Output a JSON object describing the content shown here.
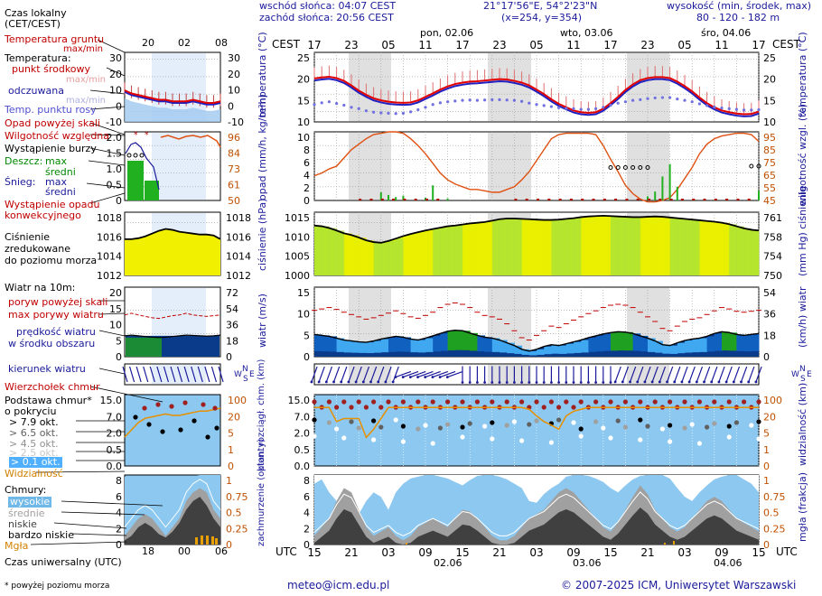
{
  "header": {
    "sunrise": "wschód słońca: 04:07 CEST",
    "sunset": "zachód słońca: 20:56 CEST",
    "coords": "21°17'56\"E, 54°2'23\"N",
    "grid": "(x=254,  y=354)",
    "altitude_title": "wysokość (min, środek, max)",
    "altitude_values": "80 - 120 - 182 m"
  },
  "timeaxis": {
    "tz_top": "CEST",
    "tz_bottom": "UTC",
    "top_hours": [
      "17",
      "23",
      "05",
      "11",
      "17",
      "23",
      "05",
      "11",
      "17",
      "23",
      "05",
      "11",
      "17"
    ],
    "bottom_hours": [
      "15",
      "21",
      "03",
      "09",
      "15",
      "21",
      "03",
      "09",
      "15",
      "21",
      "03",
      "09",
      "15"
    ],
    "days_top": [
      "pon, 02.06",
      "wto, 03.06",
      "śro, 04.06"
    ],
    "days_bottom": [
      "02.06",
      "03.06",
      "04.06"
    ]
  },
  "legend": {
    "local_time": "Czas lokalny",
    "local_time_sub": "(CET/CEST)",
    "soil_temp": "Temperatura gruntu",
    "soil_temp_sub": "max/min",
    "temperature": "Temperatura:",
    "mid_point": "punkt środkowy",
    "max_min": "max/min",
    "felt": "odczuwana",
    "dew_point": "Temp. punktu rosy",
    "above_ground": "Opad powyżej skali",
    "humidity": "Wilgotność względna",
    "storm": "Wystąpienie burzy",
    "rain": "Deszcz:",
    "max": "max",
    "mean": "średni",
    "snow": "Śnieg:",
    "conv": "Wystąpienie opadu",
    "conv2": "konwekcyjnego",
    "pressure": "Ciśnienie",
    "pressure2": "zredukowane",
    "pressure3": "do poziomu morza",
    "wind10": "Wiatr na 10m:",
    "gust_above": "poryw powyżej skali",
    "max_gust": "max porywy wiatru",
    "wind_speed": "prędkość wiatru",
    "wind_speed2": "w środku obszaru",
    "wind_dir": "kierunek wiatru",
    "cb_top": "Wierzchołek chmur",
    "cloud_base": "Podstawa chmur*",
    "cloud_base2": "o pokryciu",
    "okt": [
      "> 7.9 okt.",
      "> 6.5 okt.",
      "> 4.5 okt.",
      "> 2.5 okt.",
      "> 0.1 okt."
    ],
    "visibility": "Widzialność",
    "clouds": "Chmury:",
    "high": "wysokie",
    "mid": "średnie",
    "low": "niskie",
    "vlow": "bardzo niskie",
    "fog": "Mgła",
    "utc": "Czas uniwersalny (UTC)",
    "footnote": "* powyżej poziomu morza",
    "mini_top_hours": [
      "20",
      "02",
      "08"
    ],
    "mini_bottom_hours": [
      "18",
      "00",
      "06"
    ]
  },
  "panels": {
    "temperature": {
      "label_l": "temperatura (°C)",
      "label_r": "temperatura (°C)",
      "ticks": [
        "25",
        "20",
        "15",
        "10"
      ],
      "mini_ticks": [
        "30",
        "20",
        "10",
        "0",
        "-10"
      ]
    },
    "precip": {
      "label_l": "opad (mm/h, kg/m²h)",
      "label_r": "wilgotność wzgl. (%)",
      "ticks": [
        "10",
        "8",
        "6",
        "4",
        "2",
        "0"
      ],
      "r_ticks": [
        "95",
        "85",
        "75",
        "65",
        "55",
        "45"
      ],
      "mini_ticks": [
        "2.0",
        "1.5",
        "1.0",
        "0.5",
        "0"
      ],
      "mini_r_ticks": [
        "96",
        "84",
        "73",
        "61",
        "50"
      ]
    },
    "pressure": {
      "label_l": "ciśnienie (hPa)",
      "label_r": "(mm Hg) ciśnienie",
      "ticks": [
        "1015",
        "1010",
        "1005",
        "1000"
      ],
      "r_ticks": [
        "761",
        "758",
        "754",
        "750"
      ],
      "mini_ticks": [
        "1018",
        "1016",
        "1014",
        "1012"
      ]
    },
    "wind": {
      "label_l": "wiatr (m/s)",
      "label_r": "(km/h) wiatr",
      "ticks": [
        "15",
        "10",
        "5",
        "0"
      ],
      "r_ticks": [
        "54",
        "36",
        "18",
        "0"
      ],
      "mini_ticks": [
        "20",
        "15",
        "10",
        "5",
        "0"
      ],
      "mini_r_ticks": [
        "72",
        "54",
        "36",
        "18",
        "0"
      ]
    },
    "cloudbase": {
      "label_l": "pion. rozciągł. chm. (km)",
      "label_r": "widzialność (km)",
      "ticks": [
        "15.0",
        "7.0",
        "2.0",
        "0.5",
        "0.0"
      ],
      "r_ticks": [
        "100",
        "20",
        "5",
        "1",
        "0"
      ],
      "mini_ticks": [
        "15.0",
        "7.0",
        "2.0",
        "0.5",
        "0.0"
      ]
    },
    "clouds": {
      "label_l": "zachmurzenie (oktanty)",
      "label_r": "mgła (frakcja)",
      "ticks": [
        "8",
        "6",
        "4",
        "2",
        "0"
      ],
      "r_ticks": [
        "1",
        "0.75",
        "0.5",
        "0.25",
        "0"
      ]
    }
  },
  "chart_data": {
    "type": "line",
    "title": "Meteogram",
    "x_hours_from_start": "0-60, step 1",
    "series": [
      {
        "name": "temperature",
        "values": [
          19.5,
          19.8,
          20,
          19.6,
          18.8,
          17.5,
          16,
          14.8,
          13.8,
          13.2,
          12.8,
          12.6,
          12.5,
          12.6,
          13.2,
          14.2,
          15.2,
          16.3,
          17.2,
          17.9,
          18.3,
          18.6,
          18.7,
          18.9,
          19.1,
          19.3,
          19.2,
          18.8,
          18.3,
          17.5,
          16.3,
          15,
          13.5,
          12.2,
          11.2,
          10.3,
          9.8,
          9.6,
          9.8,
          10.8,
          12.4,
          14.2,
          16.2,
          17.8,
          19,
          19.6,
          19.9,
          19.9,
          19.6,
          18.6,
          17.3,
          15.8,
          14,
          12.4,
          11.2,
          10.3,
          9.8,
          9.4,
          9.2,
          9.3,
          10
        ]
      },
      {
        "name": "dew_point",
        "values": [
          12,
          12.5,
          12.8,
          12.3,
          11.8,
          11.2,
          10.8,
          10.2,
          9.8,
          9.6,
          9.5,
          9.4,
          9.5,
          9.9,
          10.5,
          11.2,
          12,
          12.5,
          12.8,
          13,
          13.2,
          13.3,
          13.2,
          13.3,
          13.4,
          13.4,
          13.3,
          13.2,
          12.9,
          12.4,
          12,
          11.7,
          11.4,
          11.1,
          10.9,
          10.8,
          10.6,
          10.6,
          10.8,
          11.2,
          11.8,
          12.4,
          12.8,
          13.2,
          13.4,
          13.7,
          13.9,
          14,
          14,
          13.6,
          13.2,
          12.8,
          12.2,
          11.7,
          11.3,
          11,
          10.8,
          10.6,
          10.4,
          10.4,
          10.5
        ]
      },
      {
        "name": "humidity",
        "values": [
          63,
          65,
          68,
          70,
          76,
          82,
          86,
          90,
          93,
          94,
          95,
          95,
          94,
          90,
          85,
          79,
          72,
          65,
          60,
          57,
          55,
          53,
          53,
          52,
          51,
          51,
          53,
          55,
          60,
          66,
          74,
          82,
          90,
          93,
          94,
          94,
          94,
          94,
          93,
          85,
          75,
          66,
          56,
          50,
          46,
          44,
          44,
          45,
          47,
          53,
          61,
          69,
          79,
          86,
          90,
          92,
          93,
          94,
          94,
          93,
          88
        ]
      },
      {
        "name": "pressure",
        "values": [
          1014.2,
          1014,
          1013.5,
          1012.8,
          1012,
          1011.5,
          1010.8,
          1010,
          1009.5,
          1009.3,
          1009.8,
          1010.5,
          1011.2,
          1011.8,
          1012.3,
          1012.8,
          1013.2,
          1013.6,
          1014,
          1014.2,
          1014.5,
          1014.8,
          1015,
          1015.2,
          1015.6,
          1016,
          1016.2,
          1016.2,
          1016.1,
          1016,
          1015.9,
          1015.8,
          1015.8,
          1015.9,
          1016.1,
          1016.3,
          1016.6,
          1016.8,
          1016.9,
          1017,
          1016.9,
          1016.8,
          1016.7,
          1016.6,
          1016.6,
          1016.7,
          1016.8,
          1016.7,
          1016.5,
          1016.3,
          1016.1,
          1015.9,
          1015.7,
          1015.5,
          1015.3,
          1015,
          1014.6,
          1014,
          1013.4,
          1013,
          1012.8
        ]
      },
      {
        "name": "wind_speed",
        "values": [
          4.8,
          4.6,
          4.4,
          4,
          3.6,
          3.4,
          3.2,
          3.1,
          3.4,
          3.8,
          4.1,
          4.4,
          4.2,
          3.8,
          3.6,
          4,
          4.5,
          5,
          5.5,
          5.7,
          5.6,
          5.1,
          4.6,
          4.2,
          4,
          3.6,
          3,
          2.4,
          1.6,
          1.2,
          1.6,
          2.2,
          2.6,
          2.4,
          2.8,
          3.2,
          3.6,
          4.1,
          4.5,
          4.9,
          5.2,
          5.4,
          5.3,
          5,
          4.5,
          4,
          3.4,
          2.6,
          2.4,
          3,
          3.5,
          3.8,
          4,
          4.4,
          5,
          5.4,
          5.2,
          4.8,
          4.6,
          4.8,
          5
        ]
      },
      {
        "name": "wind_gust",
        "values": [
          10,
          10.3,
          10.6,
          10.2,
          9.6,
          9.1,
          8.6,
          8.1,
          8.4,
          8.9,
          9.4,
          9.9,
          9.3,
          8.6,
          8.3,
          8.9,
          9.6,
          10.6,
          11.3,
          11.6,
          11.3,
          10.6,
          9.6,
          8.9,
          8.6,
          8.1,
          7.1,
          5.6,
          4.1,
          3.6,
          4.6,
          5.6,
          6.6,
          6.3,
          7.1,
          7.9,
          8.6,
          9.3,
          9.9,
          10.6,
          11.1,
          11.3,
          11.1,
          10.6,
          9.6,
          8.6,
          7.6,
          6.1,
          5.6,
          6.6,
          7.6,
          8.1,
          8.4,
          9.1,
          9.9,
          10.6,
          10.3,
          9.8,
          9.6,
          9.8,
          10
        ]
      },
      {
        "name": "visibility",
        "values": [
          12,
          12,
          12,
          6,
          7,
          7,
          7,
          2.5,
          4,
          7,
          12,
          12,
          12,
          12,
          12,
          12,
          12,
          12,
          12,
          12,
          12,
          12,
          12,
          12,
          12,
          12,
          12,
          12,
          12,
          11,
          8,
          6,
          5,
          4,
          8,
          10,
          11,
          12,
          12,
          12,
          12,
          12,
          12,
          12,
          12,
          12,
          12,
          12,
          12,
          12,
          12,
          12,
          12,
          12,
          12,
          12,
          12,
          12,
          12,
          12,
          12
        ]
      },
      {
        "name": "fog",
        "values": [
          0,
          0,
          0,
          0,
          0,
          0,
          0,
          0,
          0,
          0,
          0,
          0,
          0,
          0,
          0,
          0,
          0,
          0,
          0,
          0,
          0,
          0,
          0,
          0,
          0,
          0,
          0,
          0,
          0,
          0,
          0,
          0,
          0,
          0,
          0,
          0,
          0,
          0,
          0,
          0,
          0,
          0,
          0,
          0,
          0,
          0,
          0,
          0,
          0,
          0,
          0,
          0,
          0,
          0,
          0,
          0,
          0.1,
          0,
          0,
          0,
          0
        ]
      }
    ]
  },
  "footer": {
    "email": "meteo@icm.edu.pl",
    "copyright": "© 2007-2025 ICM, Uniwersytet Warszawski"
  },
  "colors": {
    "temp": "#e00000",
    "felt": "#2020c0",
    "dew": "#6060e0",
    "humidity": "#e05010",
    "pressure_fill": "#f0f000",
    "wind": "#1060c0",
    "sky": "#8cc8f0"
  }
}
